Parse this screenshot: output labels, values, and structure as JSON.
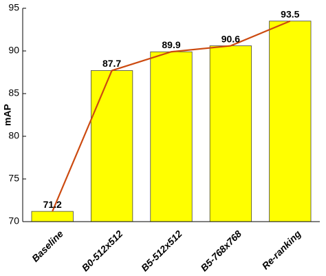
{
  "chart_data": {
    "type": "bar",
    "categories": [
      "Baseline",
      "B0-512x512",
      "B5-512x512",
      "B5-768x768",
      "Re-ranking"
    ],
    "values": [
      71.2,
      87.7,
      89.9,
      90.6,
      93.5
    ],
    "color": "#ffff00",
    "line_color": "#cc4a10",
    "y_label": "mAP",
    "ylim": [
      70,
      95
    ],
    "yticks": [
      70,
      75,
      80,
      85,
      90,
      95
    ],
    "grid": false
  }
}
